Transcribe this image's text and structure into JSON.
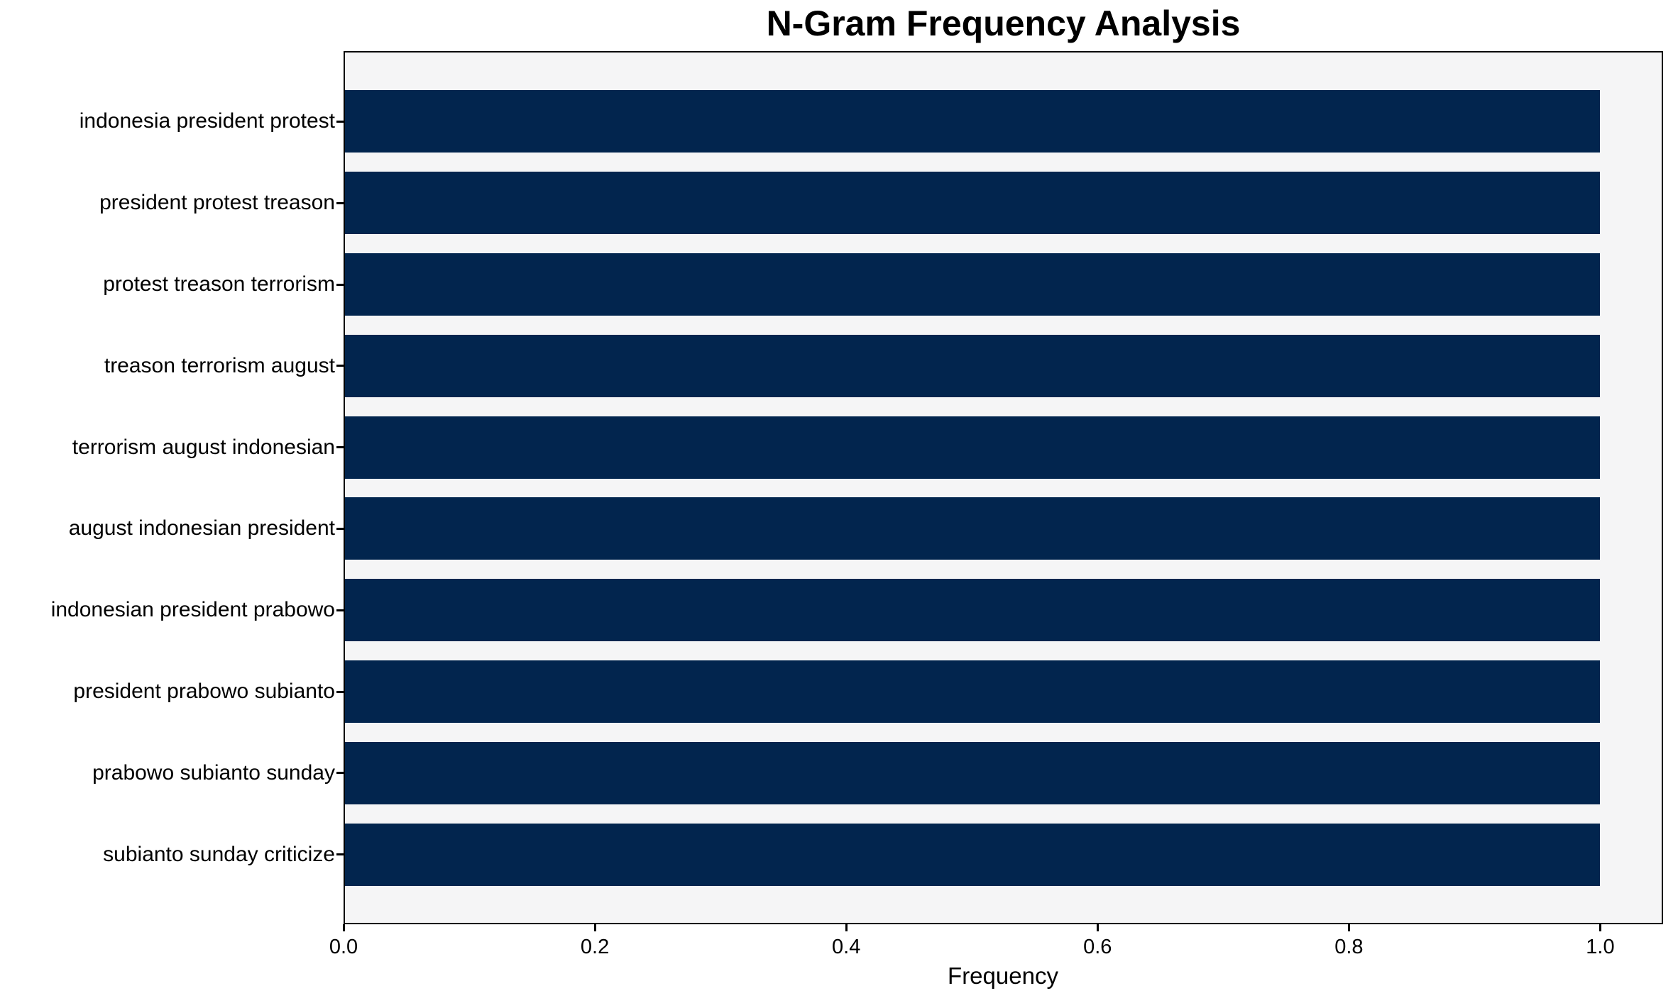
{
  "figure": {
    "title": "N-Gram Frequency Analysis",
    "xlabel": "Frequency"
  },
  "colors": {
    "bar": "#02254e",
    "plot_background": "#f5f5f6",
    "spine": "#000000",
    "figure_background": "#ffffff",
    "text": "#000000"
  },
  "chart_data": {
    "type": "bar",
    "orientation": "horizontal",
    "title": "N-Gram Frequency Analysis",
    "xlabel": "Frequency",
    "ylabel": "",
    "categories": [
      "indonesia president protest",
      "president protest treason",
      "protest treason terrorism",
      "treason terrorism august",
      "terrorism august indonesian",
      "august indonesian president",
      "indonesian president prabowo",
      "president prabowo subianto",
      "prabowo subianto sunday",
      "subianto sunday criticize"
    ],
    "values": [
      1.0,
      1.0,
      1.0,
      1.0,
      1.0,
      1.0,
      1.0,
      1.0,
      1.0,
      1.0
    ],
    "xticks": [
      0.0,
      0.2,
      0.4,
      0.6,
      0.8,
      1.0
    ],
    "xtick_labels": [
      "0.0",
      "0.2",
      "0.4",
      "0.6",
      "0.8",
      "1.0"
    ],
    "xlim": [
      0,
      1.05
    ],
    "grid": false,
    "legend": null
  }
}
